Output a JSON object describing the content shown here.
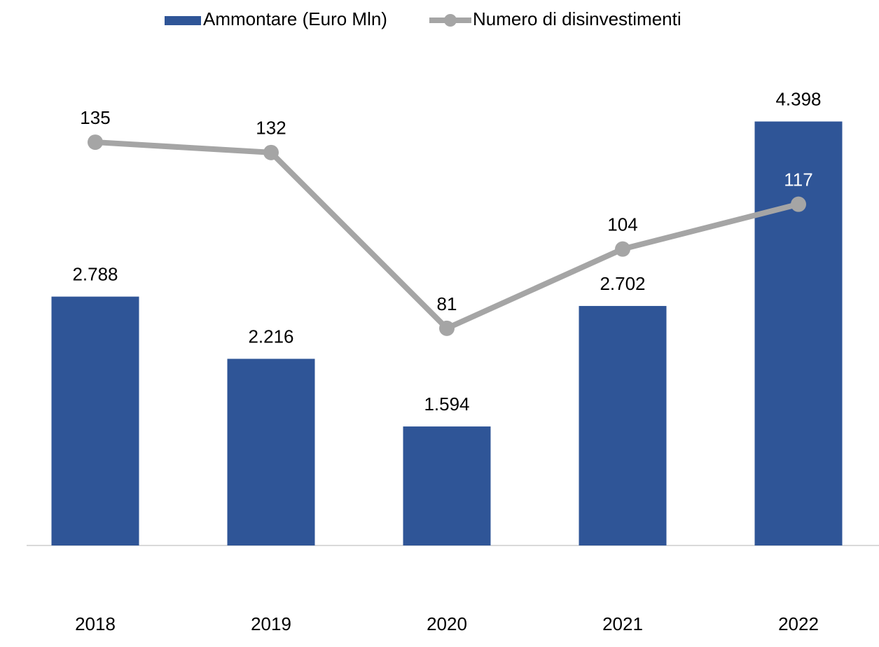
{
  "chart_data": {
    "type": "bar+line",
    "categories": [
      "2018",
      "2019",
      "2020",
      "2021",
      "2022"
    ],
    "series": [
      {
        "name": "Ammontare (Euro Mln)",
        "type": "bar",
        "color": "#2f5597",
        "values": [
          2788,
          2216,
          1594,
          2702,
          4398
        ],
        "value_labels": [
          "2.788",
          "2.216",
          "1.594",
          "2.702",
          "4.398"
        ]
      },
      {
        "name": "Numero di disinvestimenti",
        "type": "line",
        "axis": "y2",
        "color": "#a5a5a5",
        "values": [
          135,
          132,
          81,
          104,
          117
        ]
      }
    ],
    "ylim": [
      500,
      5000
    ],
    "y2lim": [
      18,
      160
    ],
    "legend": "top"
  }
}
